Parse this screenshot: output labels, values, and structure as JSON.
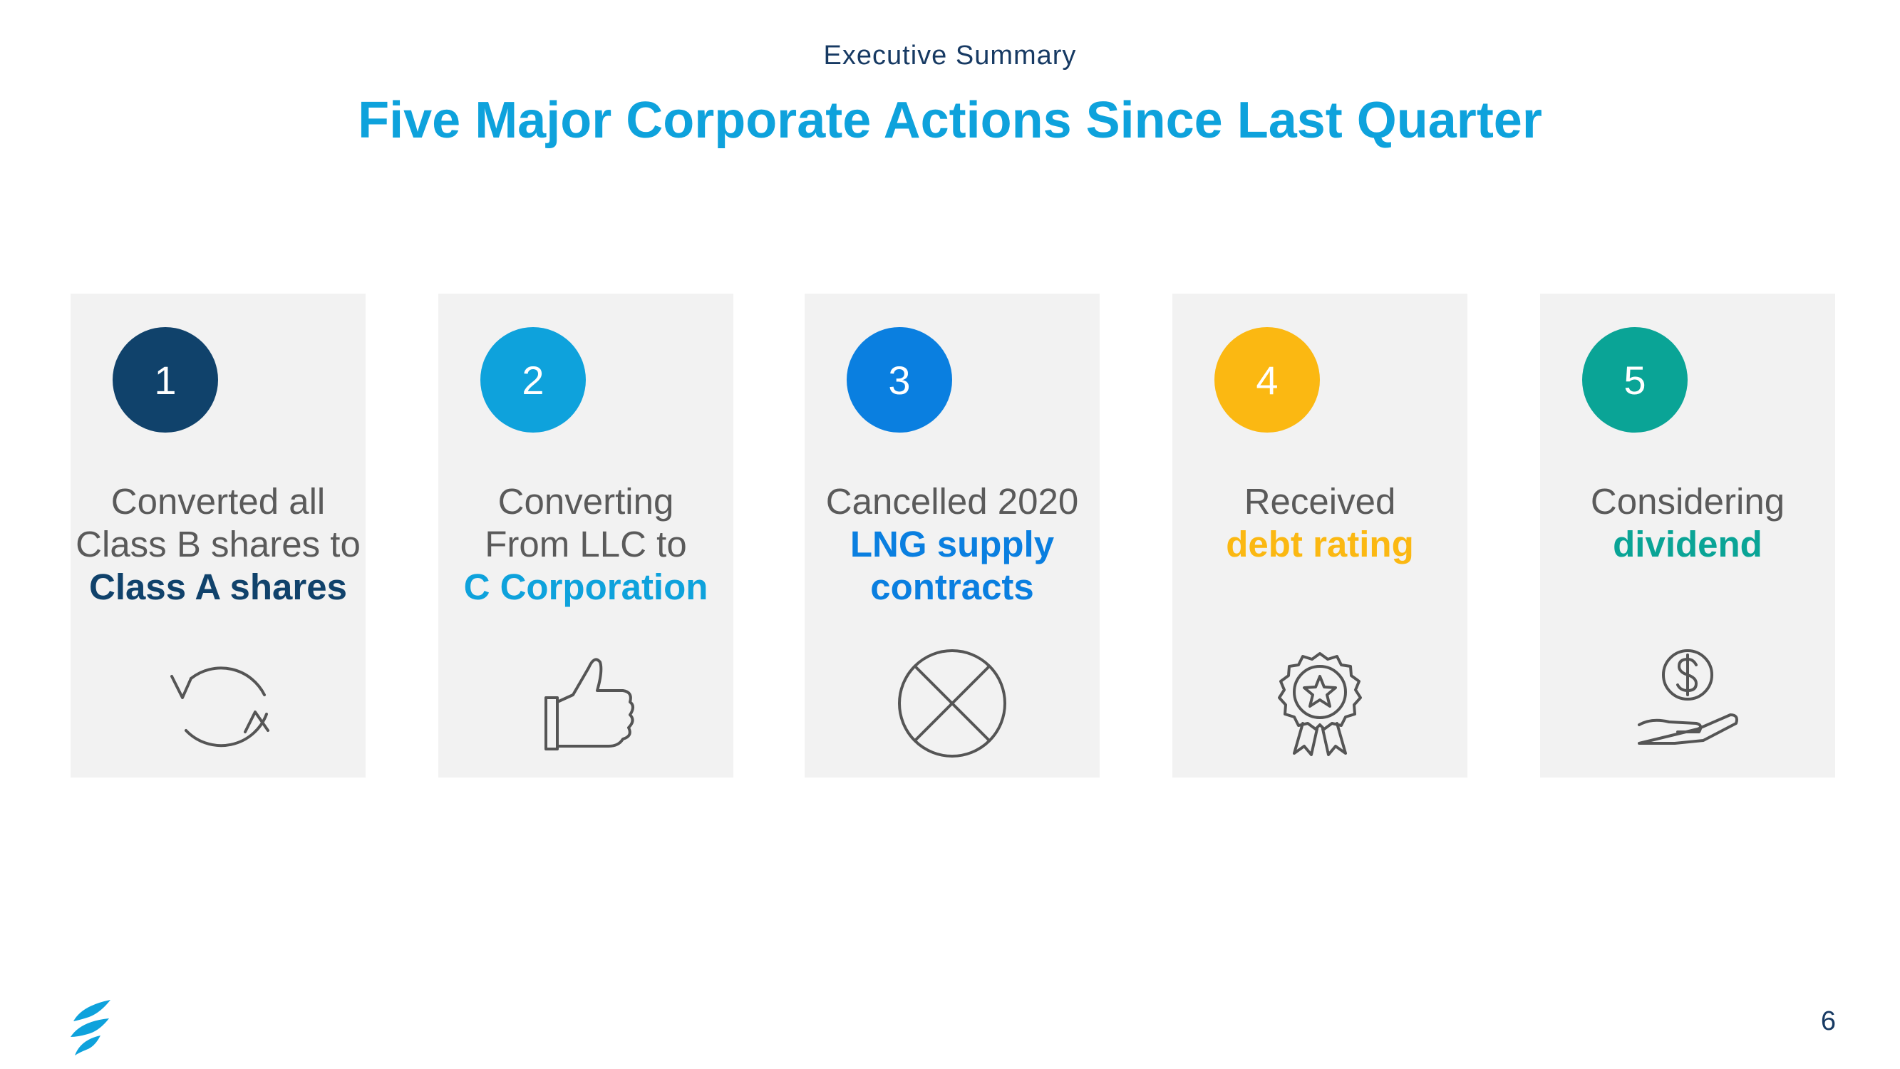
{
  "header": {
    "subtitle": "Executive Summary",
    "title": "Five Major Corporate Actions Since Last Quarter"
  },
  "cards": [
    {
      "number": "1",
      "color": "#10426b",
      "lines": [
        "Converted all",
        "Class B shares to"
      ],
      "emphasis": [
        "Class A shares"
      ],
      "icon": "refresh-icon"
    },
    {
      "number": "2",
      "color": "#0ea2dc",
      "lines": [
        "Converting",
        "From LLC to"
      ],
      "emphasis": [
        "C Corporation"
      ],
      "icon": "thumbs-up-icon"
    },
    {
      "number": "3",
      "color": "#0a7fe0",
      "lines": [
        "Cancelled 2020"
      ],
      "emphasis": [
        "LNG supply",
        "contracts"
      ],
      "icon": "cancel-circle-icon"
    },
    {
      "number": "4",
      "color": "#fbb812",
      "lines": [
        "Received"
      ],
      "emphasis": [
        "debt rating"
      ],
      "icon": "award-ribbon-icon"
    },
    {
      "number": "5",
      "color": "#0aa496",
      "lines": [
        "Considering"
      ],
      "emphasis": [
        "dividend"
      ],
      "icon": "dollar-hand-icon"
    }
  ],
  "footer": {
    "page_number": "6",
    "logo": "company-flame-logo"
  }
}
